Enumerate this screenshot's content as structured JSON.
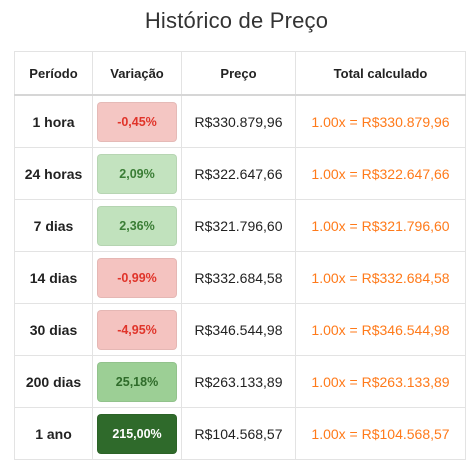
{
  "title": "Histórico de Preço",
  "columns": [
    "Período",
    "Variação",
    "Preço",
    "Total calculado"
  ],
  "rows": [
    {
      "period": "1 hora",
      "change": "-0,45%",
      "price": "R$330.879,96",
      "total": "1.00x = R$330.879,96",
      "change_bg": "#f4c6c3",
      "change_fg": "#e0342a"
    },
    {
      "period": "24 horas",
      "change": "2,09%",
      "price": "R$322.647,66",
      "total": "1.00x = R$322.647,66",
      "change_bg": "#c3e3bf",
      "change_fg": "#3a7d35"
    },
    {
      "period": "7 dias",
      "change": "2,36%",
      "price": "R$321.796,60",
      "total": "1.00x = R$321.796,60",
      "change_bg": "#c1e2bd",
      "change_fg": "#3a7d35"
    },
    {
      "period": "14 dias",
      "change": "-0,99%",
      "price": "R$332.684,58",
      "total": "1.00x = R$332.684,58",
      "change_bg": "#f4c3c0",
      "change_fg": "#e0342a"
    },
    {
      "period": "30 dias",
      "change": "-4,95%",
      "price": "R$346.544,98",
      "total": "1.00x = R$346.544,98",
      "change_bg": "#f4c3c0",
      "change_fg": "#e0342a"
    },
    {
      "period": "200 dias",
      "change": "25,18%",
      "price": "R$263.133,89",
      "total": "1.00x = R$263.133,89",
      "change_bg": "#9ccf95",
      "change_fg": "#2f6b2a"
    },
    {
      "period": "1 ano",
      "change": "215,00%",
      "price": "R$104.568,57",
      "total": "1.00x = R$104.568,57",
      "change_bg": "#2f6a2b",
      "change_fg": "#ffffff"
    }
  ],
  "colors": {
    "total_text": "#ff7a1a",
    "negative_text": "#e0342a",
    "positive_text": "#3a7d35"
  }
}
